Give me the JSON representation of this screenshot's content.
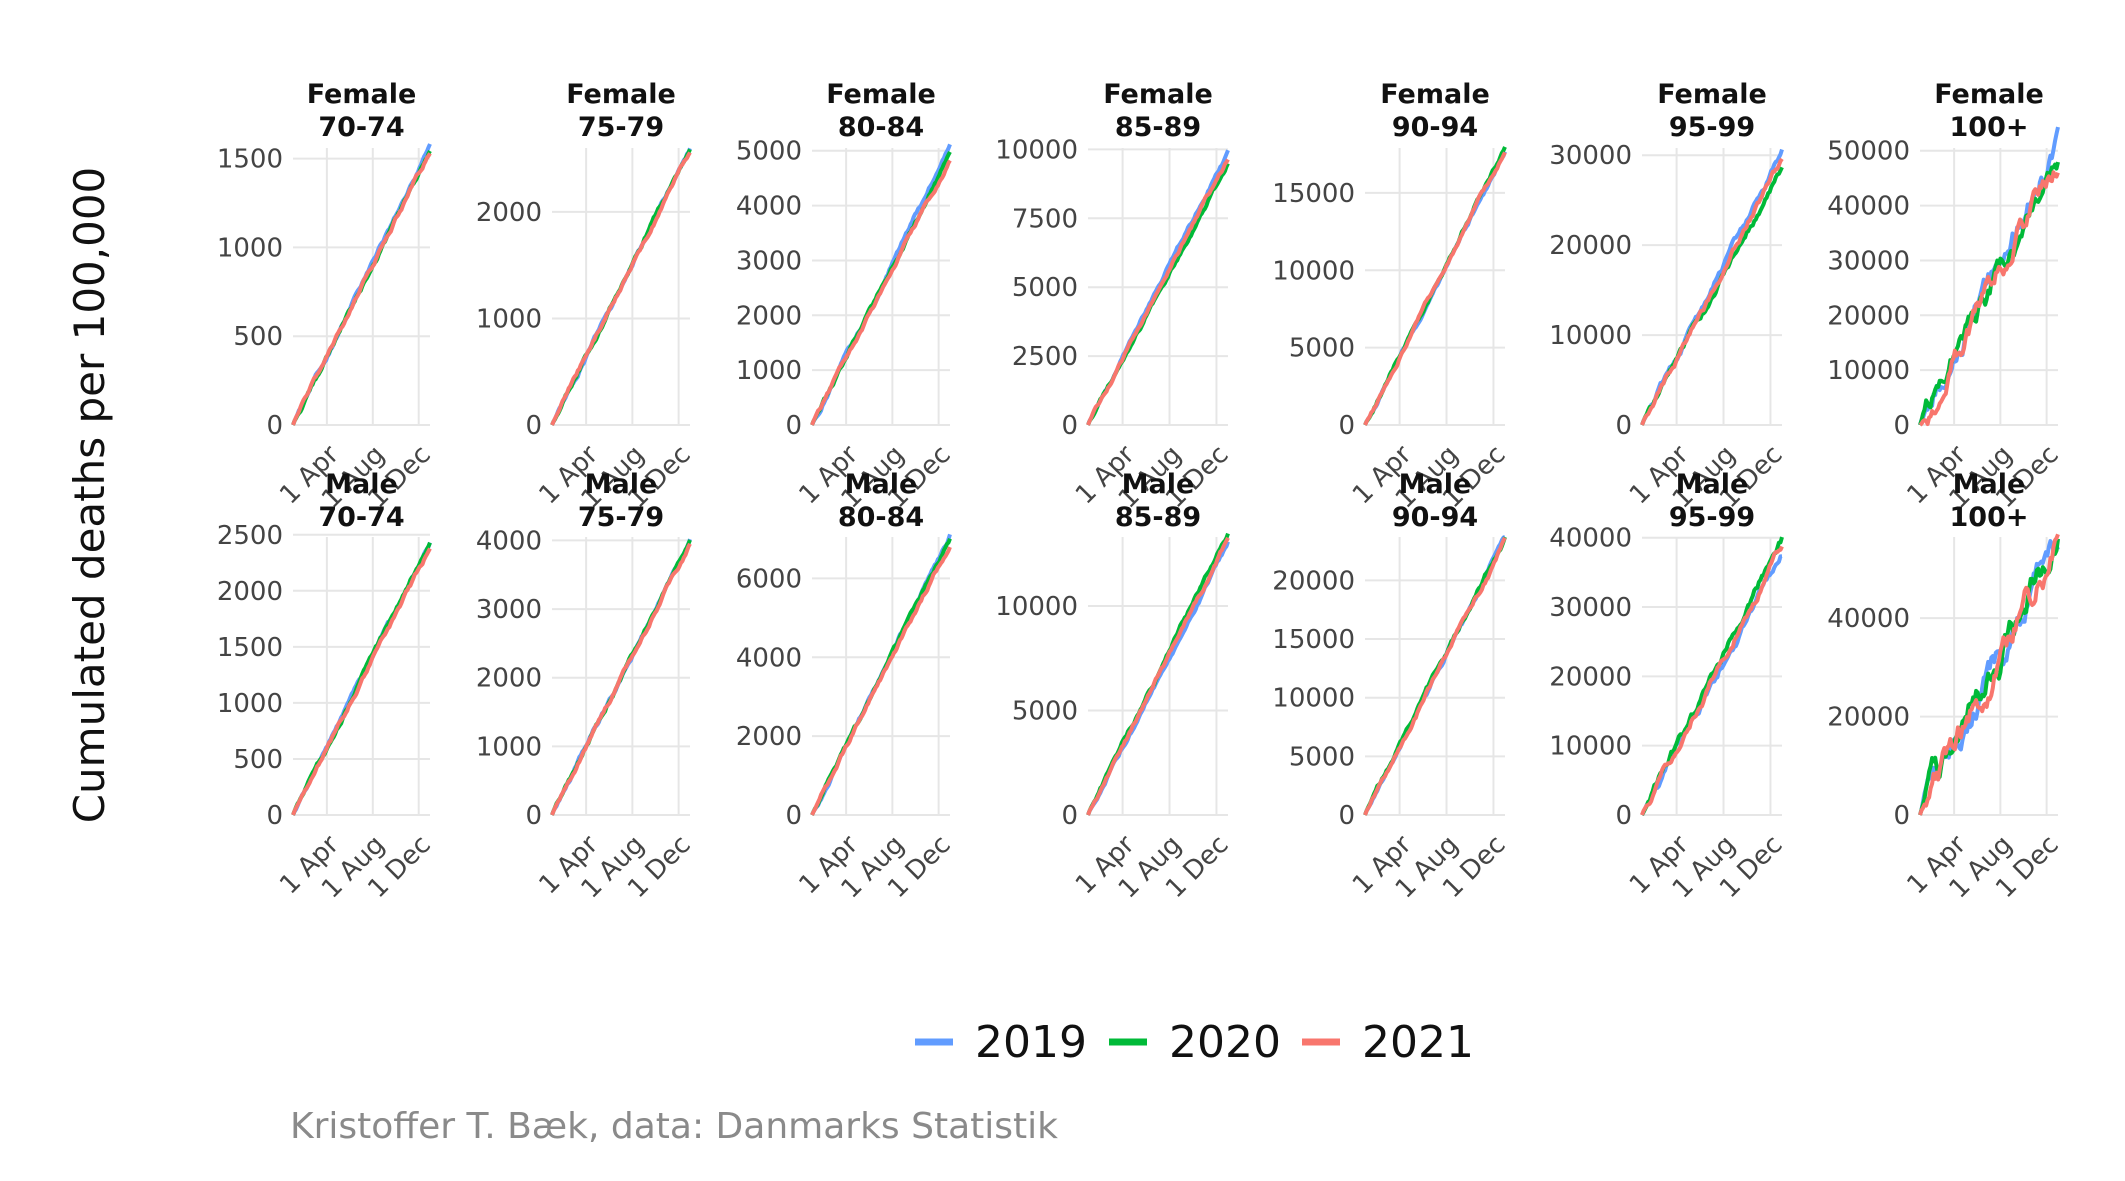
{
  "chart_data": {
    "type": "line",
    "ylabel": "Cumulated deaths per 100,000",
    "caption": "Kristoffer T. Bæk, data: Danmarks Statistik",
    "x_ticks": [
      {
        "label": "1 Apr",
        "day": 91
      },
      {
        "label": "1 Aug",
        "day": 213
      },
      {
        "label": "1 Dec",
        "day": 335
      }
    ],
    "xlim": [
      1,
      365
    ],
    "series_names": [
      "2019",
      "2020",
      "2021"
    ],
    "colors": {
      "2019": "#619cff",
      "2020": "#00ba38",
      "2021": "#f8766d"
    },
    "legend_position": "bottom",
    "panels": [
      {
        "sex": "Female",
        "age": "70-74",
        "ylim": [
          0,
          1560
        ],
        "yticks": [
          0,
          500,
          1000,
          1500
        ],
        "final": [
          1570,
          1535,
          1545
        ],
        "wiggle": 0.005
      },
      {
        "sex": "Female",
        "age": "75-79",
        "ylim": [
          0,
          2600
        ],
        "yticks": [
          0,
          1000,
          2000
        ],
        "final": [
          2590,
          2600,
          2580
        ],
        "wiggle": 0.005
      },
      {
        "sex": "Female",
        "age": "80-84",
        "ylim": [
          0,
          5050
        ],
        "yticks": [
          0,
          1000,
          2000,
          3000,
          4000,
          5000
        ],
        "final": [
          5100,
          4950,
          4850
        ],
        "wiggle": 0.005
      },
      {
        "sex": "Female",
        "age": "85-89",
        "ylim": [
          0,
          10050
        ],
        "yticks": [
          0,
          2500,
          5000,
          7500,
          10000
        ],
        "final": [
          9900,
          9500,
          9700
        ],
        "wiggle": 0.005
      },
      {
        "sex": "Female",
        "age": "90-94",
        "ylim": [
          0,
          17900
        ],
        "yticks": [
          0,
          5000,
          10000,
          15000
        ],
        "final": [
          17700,
          18000,
          17800
        ],
        "wiggle": 0.005
      },
      {
        "sex": "Female",
        "age": "95-99",
        "ylim": [
          0,
          30800
        ],
        "yticks": [
          0,
          10000,
          20000,
          30000
        ],
        "final": [
          30500,
          28500,
          29500
        ],
        "wiggle": 0.008
      },
      {
        "sex": "Female",
        "age": "100+",
        "ylim": [
          0,
          50500
        ],
        "yticks": [
          0,
          10000,
          20000,
          30000,
          40000,
          50000
        ],
        "final": [
          51000,
          49000,
          48500
        ],
        "wiggle": 0.025
      },
      {
        "sex": "Male",
        "age": "70-74",
        "ylim": [
          0,
          2480
        ],
        "yticks": [
          0,
          500,
          1000,
          1500,
          2000,
          2500
        ],
        "final": [
          2420,
          2430,
          2380
        ],
        "wiggle": 0.005
      },
      {
        "sex": "Male",
        "age": "75-79",
        "ylim": [
          0,
          4050
        ],
        "yticks": [
          0,
          1000,
          2000,
          3000,
          4000
        ],
        "final": [
          4000,
          4000,
          3950
        ],
        "wiggle": 0.005
      },
      {
        "sex": "Male",
        "age": "80-84",
        "ylim": [
          0,
          7050
        ],
        "yticks": [
          0,
          2000,
          4000,
          6000
        ],
        "final": [
          7100,
          7000,
          6900
        ],
        "wiggle": 0.005
      },
      {
        "sex": "Male",
        "age": "85-89",
        "ylim": [
          0,
          13300
        ],
        "yticks": [
          0,
          5000,
          10000
        ],
        "final": [
          13000,
          13500,
          13200
        ],
        "wiggle": 0.005
      },
      {
        "sex": "Male",
        "age": "90-94",
        "ylim": [
          0,
          23700
        ],
        "yticks": [
          0,
          5000,
          10000,
          15000,
          20000
        ],
        "final": [
          23500,
          23800,
          23300
        ],
        "wiggle": 0.006
      },
      {
        "sex": "Male",
        "age": "95-99",
        "ylim": [
          0,
          40100
        ],
        "yticks": [
          0,
          10000,
          20000,
          30000,
          40000
        ],
        "final": [
          37500,
          40000,
          38500
        ],
        "wiggle": 0.01
      },
      {
        "sex": "Male",
        "age": "100+",
        "ylim": [
          0,
          56500
        ],
        "yticks": [
          0,
          20000,
          40000
        ],
        "final": [
          56000,
          57000,
          55000
        ],
        "wiggle": 0.03
      }
    ]
  }
}
